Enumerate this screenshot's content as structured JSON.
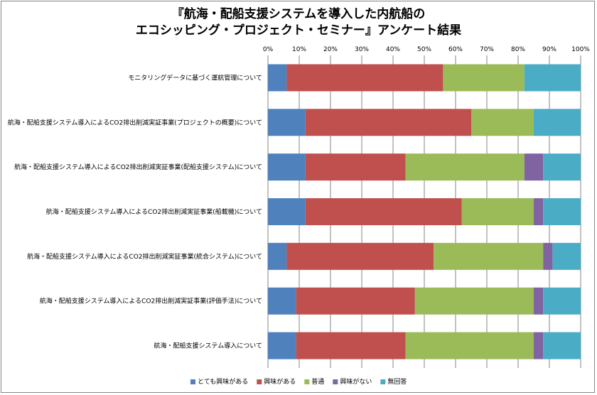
{
  "chart_data": {
    "type": "bar",
    "orientation": "horizontal",
    "stacked": "percent",
    "title_lines": [
      "『航海・配船支援システムを導入した内航船の",
      "エコシッピング・プロジェクト・セミナー』アンケート結果"
    ],
    "xlim": [
      0,
      100
    ],
    "xticks": [
      "0%",
      "10%",
      "20%",
      "30%",
      "40%",
      "50%",
      "60%",
      "70%",
      "80%",
      "90%",
      "100%"
    ],
    "grid": true,
    "legend_position": "bottom",
    "categories": [
      "モニタリングデータに基づく運航管理について",
      "航海・配船支援システム導入によるCO2排出削減実証事業(プロジェクトの概要)について",
      "航海・配船支援システム導入によるCO2排出削減実証事業(配船支援システム)について",
      "航海・配船支援システム導入によるCO2排出削減実証事業(船載機)について",
      "航海・配船支援システム導入によるCO2排出削減実証事業(統合システム)について",
      "航海・配船支援システム導入によるCO2排出削減実証事業(評価手法)について",
      "航海・配船支援システム導入について"
    ],
    "series": [
      {
        "name": "とても興味がある",
        "color": "#4F81BD",
        "values": [
          6,
          12,
          12,
          12,
          6,
          9,
          9
        ]
      },
      {
        "name": "興味がある",
        "color": "#C0504D",
        "values": [
          50,
          53,
          32,
          50,
          47,
          38,
          35
        ]
      },
      {
        "name": "普通",
        "color": "#9BBB59",
        "values": [
          26,
          20,
          38,
          23,
          35,
          38,
          41
        ]
      },
      {
        "name": "興味がない",
        "color": "#8064A2",
        "values": [
          0,
          0,
          6,
          3,
          3,
          3,
          3
        ]
      },
      {
        "name": "無回答",
        "color": "#4BACC6",
        "values": [
          18,
          15,
          12,
          12,
          9,
          12,
          12
        ]
      }
    ]
  }
}
